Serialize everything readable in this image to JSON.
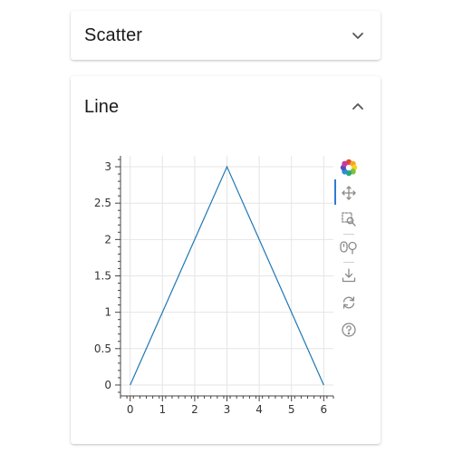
{
  "panels": [
    {
      "title": "Scatter",
      "expanded": false
    },
    {
      "title": "Line",
      "expanded": true
    }
  ],
  "toolbar": {
    "tools": [
      "bokeh-logo-icon",
      "pan-icon",
      "box-zoom-icon",
      "wheel-zoom-icon",
      "save-icon",
      "reset-icon",
      "help-icon"
    ],
    "active_tool": "pan-icon"
  },
  "colors": {
    "line": "#1f77b4",
    "grid": "#e5e5e5",
    "axis": "#444444"
  },
  "chart_data": {
    "type": "line",
    "x": [
      0,
      3,
      6
    ],
    "y": [
      0,
      3,
      0
    ],
    "xlim": [
      -0.3,
      6.3
    ],
    "ylim": [
      -0.15,
      3.15
    ],
    "xticks": [
      0,
      1,
      2,
      3,
      4,
      5,
      6
    ],
    "yticks": [
      0,
      0.5,
      1,
      1.5,
      2,
      2.5,
      3
    ],
    "grid": true,
    "title": "",
    "xlabel": "",
    "ylabel": ""
  }
}
